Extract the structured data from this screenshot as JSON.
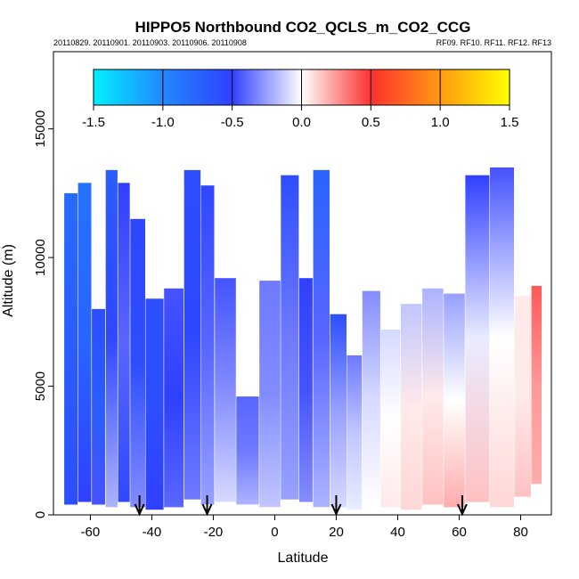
{
  "chart_data": {
    "type": "heatmap",
    "title": "HIPPO5 Northbound CO2_QCLS_m_CO2_CCG",
    "subtitle_left": "20110829. 20110901. 20110903. 20110906. 20110908",
    "subtitle_right": "RF09. RF10. RF11. RF12. RF13",
    "xlabel": "Latitude",
    "ylabel": "Altitude (m)",
    "xlim": [
      -72,
      90
    ],
    "ylim": [
      0,
      18000
    ],
    "x_ticks": [
      -60,
      -40,
      -20,
      0,
      20,
      40,
      60,
      80
    ],
    "y_ticks": [
      0,
      5000,
      10000,
      15000
    ],
    "x_tick_labels": [
      "-60",
      "-40",
      "-20",
      "0",
      "20",
      "40",
      "60",
      "80"
    ],
    "y_tick_labels": [
      "0",
      "5000",
      "10000",
      "15000"
    ],
    "grid": false,
    "colorbar": {
      "range": [
        -1.5,
        1.5
      ],
      "ticks": [
        -1.5,
        -1.0,
        -0.5,
        0.0,
        0.5,
        1.0,
        1.5
      ],
      "tick_labels": [
        "-1.5",
        "-1.0",
        "-0.5",
        "0.0",
        "0.5",
        "1.0",
        "1.5"
      ],
      "stops": [
        {
          "v": -1.5,
          "c": "#00f0ff"
        },
        {
          "v": -1.0,
          "c": "#2288ff"
        },
        {
          "v": -0.5,
          "c": "#3040ff"
        },
        {
          "v": 0.0,
          "c": "#ffffff"
        },
        {
          "v": 0.5,
          "c": "#ff3030"
        },
        {
          "v": 1.0,
          "c": "#ff9a10"
        },
        {
          "v": 1.5,
          "c": "#ffff00"
        }
      ]
    },
    "profiles": [
      {
        "lat": -66,
        "ymin": 400,
        "ymax": 12500,
        "bot": -0.6,
        "mid": -0.7,
        "top": -0.8
      },
      {
        "lat": -62,
        "ymin": 500,
        "ymax": 12900,
        "bot": -0.5,
        "mid": -0.75,
        "top": -0.85
      },
      {
        "lat": -57,
        "ymin": 400,
        "ymax": 8000,
        "bot": -0.45,
        "mid": -0.7,
        "top": -0.6
      },
      {
        "lat": -53,
        "ymin": 300,
        "ymax": 13400,
        "bot": -0.2,
        "mid": -0.55,
        "top": -0.7
      },
      {
        "lat": -49,
        "ymin": 500,
        "ymax": 12900,
        "bot": -0.55,
        "mid": -0.4,
        "top": -0.5
      },
      {
        "lat": -45,
        "ymin": 300,
        "ymax": 11500,
        "bot": -0.3,
        "mid": -0.6,
        "top": -0.55
      },
      {
        "lat": -39,
        "ymin": 200,
        "ymax": 8400,
        "bot": -0.5,
        "mid": -0.6,
        "top": -0.6
      },
      {
        "lat": -33,
        "ymin": 300,
        "ymax": 8800,
        "bot": -0.4,
        "mid": -0.5,
        "top": -0.45
      },
      {
        "lat": -26,
        "ymin": 600,
        "ymax": 13400,
        "bot": -0.35,
        "mid": -0.55,
        "top": -0.6
      },
      {
        "lat": -22,
        "ymin": 400,
        "ymax": 12800,
        "bot": -0.25,
        "mid": -0.4,
        "top": -0.55
      },
      {
        "lat": -17,
        "ymin": 500,
        "ymax": 9200,
        "bot": -0.1,
        "mid": -0.3,
        "top": -0.45
      },
      {
        "lat": -8,
        "ymin": 400,
        "ymax": 4600,
        "bot": -0.2,
        "mid": -0.35,
        "top": -0.4
      },
      {
        "lat": -2,
        "ymin": 300,
        "ymax": 9100,
        "bot": -0.15,
        "mid": -0.3,
        "top": -0.35
      },
      {
        "lat": 6,
        "ymin": 600,
        "ymax": 13200,
        "bot": -0.25,
        "mid": -0.35,
        "top": -0.6
      },
      {
        "lat": 10,
        "ymin": 500,
        "ymax": 9200,
        "bot": -0.3,
        "mid": -0.45,
        "top": -0.5
      },
      {
        "lat": 15,
        "ymin": 300,
        "ymax": 13400,
        "bot": -0.2,
        "mid": -0.4,
        "top": -0.75
      },
      {
        "lat": 21,
        "ymin": 300,
        "ymax": 7800,
        "bot": -0.1,
        "mid": -0.25,
        "top": -0.6
      },
      {
        "lat": 26,
        "ymin": 200,
        "ymax": 6200,
        "bot": -0.05,
        "mid": -0.15,
        "top": -0.35
      },
      {
        "lat": 31,
        "ymin": 400,
        "ymax": 8700,
        "bot": 0.0,
        "mid": -0.1,
        "top": -0.3
      },
      {
        "lat": 38,
        "ymin": 300,
        "ymax": 7200,
        "bot": 0.05,
        "mid": 0.0,
        "top": -0.1
      },
      {
        "lat": 44,
        "ymin": 200,
        "ymax": 8200,
        "bot": 0.1,
        "mid": 0.05,
        "top": -0.15
      },
      {
        "lat": 52,
        "ymin": 400,
        "ymax": 8800,
        "bot": 0.15,
        "mid": 0.05,
        "top": -0.2
      },
      {
        "lat": 58,
        "ymin": 300,
        "ymax": 8600,
        "bot": 0.2,
        "mid": 0.0,
        "top": -0.25
      },
      {
        "lat": 66,
        "ymin": 500,
        "ymax": 13200,
        "bot": 0.15,
        "mid": -0.05,
        "top": -0.5
      },
      {
        "lat": 74,
        "ymin": 300,
        "ymax": 13500,
        "bot": 0.1,
        "mid": 0.0,
        "top": -0.45
      },
      {
        "lat": 82,
        "ymin": 700,
        "ymax": 8500,
        "bot": 0.15,
        "mid": 0.05,
        "top": 0.05
      },
      {
        "lat": 85,
        "ymin": 1200,
        "ymax": 8900,
        "bot": 0.2,
        "mid": 0.25,
        "top": 0.4
      }
    ],
    "arrows_lat": [
      -44,
      -22,
      20,
      61
    ]
  }
}
